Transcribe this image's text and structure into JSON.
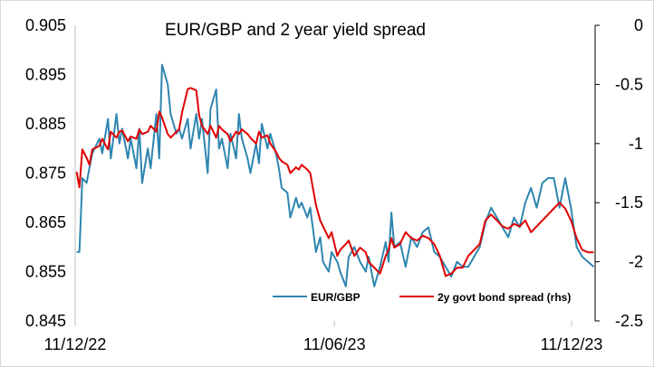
{
  "chart_data": {
    "type": "line",
    "title": "EUR/GBP and 2 year yield spread",
    "x_tick_labels": [
      "11/12/22",
      "11/06/23",
      "11/12/23"
    ],
    "x_range": [
      "2022-12-11",
      "2023-12-11"
    ],
    "y_left": {
      "range": [
        0.845,
        0.905
      ],
      "ticks": [
        0.905,
        0.895,
        0.885,
        0.875,
        0.865,
        0.855,
        0.845
      ],
      "tick_labels": [
        "0.905",
        "0.895",
        "0.885",
        "0.875",
        "0.865",
        "0.855",
        "0.845"
      ]
    },
    "y_right": {
      "range": [
        -2.5,
        0
      ],
      "ticks": [
        0,
        -0.5,
        -1,
        -1.5,
        -2,
        -2.5
      ],
      "tick_labels": [
        "0",
        "-0.5",
        "-1",
        "-1.5",
        "-2",
        "-2.5"
      ]
    },
    "grid": false,
    "legend_position": "bottom-right",
    "series": [
      {
        "name": "EUR/GBP",
        "axis": "left",
        "color": "#2E86B0",
        "points": [
          [
            "2022-12-12",
            0.859
          ],
          [
            "2022-12-14",
            0.859
          ],
          [
            "2022-12-16",
            0.874
          ],
          [
            "2022-12-19",
            0.873
          ],
          [
            "2022-12-21",
            0.876
          ],
          [
            "2022-12-23",
            0.879
          ],
          [
            "2022-12-28",
            0.882
          ],
          [
            "2022-12-30",
            0.879
          ],
          [
            "2023-01-03",
            0.886
          ],
          [
            "2023-01-05",
            0.878
          ],
          [
            "2023-01-09",
            0.887
          ],
          [
            "2023-01-11",
            0.881
          ],
          [
            "2023-01-13",
            0.884
          ],
          [
            "2023-01-17",
            0.878
          ],
          [
            "2023-01-19",
            0.882
          ],
          [
            "2023-01-23",
            0.876
          ],
          [
            "2023-01-25",
            0.884
          ],
          [
            "2023-01-27",
            0.873
          ],
          [
            "2023-01-31",
            0.88
          ],
          [
            "2023-02-02",
            0.876
          ],
          [
            "2023-02-06",
            0.887
          ],
          [
            "2023-02-08",
            0.878
          ],
          [
            "2023-02-10",
            0.897
          ],
          [
            "2023-02-14",
            0.893
          ],
          [
            "2023-02-16",
            0.887
          ],
          [
            "2023-02-20",
            0.883
          ],
          [
            "2023-02-22",
            0.884
          ],
          [
            "2023-02-24",
            0.882
          ],
          [
            "2023-02-28",
            0.886
          ],
          [
            "2023-03-02",
            0.88
          ],
          [
            "2023-03-06",
            0.887
          ],
          [
            "2023-03-08",
            0.882
          ],
          [
            "2023-03-10",
            0.886
          ],
          [
            "2023-03-14",
            0.875
          ],
          [
            "2023-03-16",
            0.888
          ],
          [
            "2023-03-20",
            0.892
          ],
          [
            "2023-03-22",
            0.88
          ],
          [
            "2023-03-24",
            0.882
          ],
          [
            "2023-03-28",
            0.876
          ],
          [
            "2023-03-30",
            0.883
          ],
          [
            "2023-04-03",
            0.878
          ],
          [
            "2023-04-05",
            0.887
          ],
          [
            "2023-04-07",
            0.882
          ],
          [
            "2023-04-11",
            0.878
          ],
          [
            "2023-04-13",
            0.875
          ],
          [
            "2023-04-17",
            0.881
          ],
          [
            "2023-04-19",
            0.877
          ],
          [
            "2023-04-21",
            0.885
          ],
          [
            "2023-04-25",
            0.88
          ],
          [
            "2023-04-27",
            0.883
          ],
          [
            "2023-05-01",
            0.879
          ],
          [
            "2023-05-03",
            0.876
          ],
          [
            "2023-05-05",
            0.872
          ],
          [
            "2023-05-09",
            0.871
          ],
          [
            "2023-05-11",
            0.866
          ],
          [
            "2023-05-15",
            0.87
          ],
          [
            "2023-05-17",
            0.868
          ],
          [
            "2023-05-19",
            0.869
          ],
          [
            "2023-05-23",
            0.866
          ],
          [
            "2023-05-25",
            0.868
          ],
          [
            "2023-05-29",
            0.859
          ],
          [
            "2023-06-01",
            0.862
          ],
          [
            "2023-06-03",
            0.857
          ],
          [
            "2023-06-07",
            0.855
          ],
          [
            "2023-06-09",
            0.859
          ],
          [
            "2023-06-13",
            0.857
          ],
          [
            "2023-06-15",
            0.855
          ],
          [
            "2023-06-19",
            0.852
          ],
          [
            "2023-06-21",
            0.858
          ],
          [
            "2023-06-25",
            0.86
          ],
          [
            "2023-06-29",
            0.857
          ],
          [
            "2023-07-03",
            0.855
          ],
          [
            "2023-07-05",
            0.858
          ],
          [
            "2023-07-09",
            0.852
          ],
          [
            "2023-07-13",
            0.856
          ],
          [
            "2023-07-17",
            0.861
          ],
          [
            "2023-07-19",
            0.857
          ],
          [
            "2023-07-21",
            0.867
          ],
          [
            "2023-07-23",
            0.86
          ],
          [
            "2023-07-27",
            0.861
          ],
          [
            "2023-07-31",
            0.856
          ],
          [
            "2023-08-04",
            0.862
          ],
          [
            "2023-08-08",
            0.86
          ],
          [
            "2023-08-12",
            0.863
          ],
          [
            "2023-08-16",
            0.864
          ],
          [
            "2023-08-20",
            0.859
          ],
          [
            "2023-08-24",
            0.858
          ],
          [
            "2023-08-28",
            0.856
          ],
          [
            "2023-09-01",
            0.854
          ],
          [
            "2023-09-05",
            0.857
          ],
          [
            "2023-09-09",
            0.856
          ],
          [
            "2023-09-13",
            0.856
          ],
          [
            "2023-09-17",
            0.858
          ],
          [
            "2023-09-21",
            0.86
          ],
          [
            "2023-09-25",
            0.865
          ],
          [
            "2023-09-29",
            0.868
          ],
          [
            "2023-10-03",
            0.866
          ],
          [
            "2023-10-07",
            0.864
          ],
          [
            "2023-10-11",
            0.862
          ],
          [
            "2023-10-15",
            0.866
          ],
          [
            "2023-10-19",
            0.864
          ],
          [
            "2023-10-23",
            0.869
          ],
          [
            "2023-10-27",
            0.872
          ],
          [
            "2023-10-31",
            0.868
          ],
          [
            "2023-11-04",
            0.873
          ],
          [
            "2023-11-08",
            0.874
          ],
          [
            "2023-11-12",
            0.874
          ],
          [
            "2023-11-16",
            0.868
          ],
          [
            "2023-11-20",
            0.874
          ],
          [
            "2023-11-24",
            0.868
          ],
          [
            "2023-11-28",
            0.86
          ],
          [
            "2023-12-02",
            0.858
          ],
          [
            "2023-12-06",
            0.857
          ],
          [
            "2023-12-10",
            0.856
          ]
        ]
      },
      {
        "name": "2y govt bond spread (rhs)",
        "axis": "right",
        "color": "#E00000",
        "points": [
          [
            "2022-12-12",
            -1.24
          ],
          [
            "2022-12-14",
            -1.37
          ],
          [
            "2022-12-16",
            -1.05
          ],
          [
            "2022-12-19",
            -1.12
          ],
          [
            "2022-12-21",
            -1.18
          ],
          [
            "2022-12-23",
            -1.05
          ],
          [
            "2022-12-28",
            -1.02
          ],
          [
            "2022-12-30",
            -0.96
          ],
          [
            "2023-01-03",
            -1.05
          ],
          [
            "2023-01-05",
            -0.9
          ],
          [
            "2023-01-09",
            -0.95
          ],
          [
            "2023-01-11",
            -0.9
          ],
          [
            "2023-01-13",
            -0.89
          ],
          [
            "2023-01-17",
            -0.98
          ],
          [
            "2023-01-19",
            -0.94
          ],
          [
            "2023-01-23",
            -0.96
          ],
          [
            "2023-01-25",
            -0.88
          ],
          [
            "2023-01-27",
            -0.92
          ],
          [
            "2023-01-31",
            -0.9
          ],
          [
            "2023-02-02",
            -0.85
          ],
          [
            "2023-02-06",
            -0.9
          ],
          [
            "2023-02-08",
            -0.73
          ],
          [
            "2023-02-10",
            -0.78
          ],
          [
            "2023-02-14",
            -0.92
          ],
          [
            "2023-02-16",
            -0.95
          ],
          [
            "2023-02-20",
            -0.9
          ],
          [
            "2023-02-22",
            -0.88
          ],
          [
            "2023-02-24",
            -0.74
          ],
          [
            "2023-02-28",
            -0.54
          ],
          [
            "2023-03-02",
            -0.53
          ],
          [
            "2023-03-06",
            -0.55
          ],
          [
            "2023-03-08",
            -0.76
          ],
          [
            "2023-03-10",
            -0.85
          ],
          [
            "2023-03-14",
            -0.92
          ],
          [
            "2023-03-16",
            -0.85
          ],
          [
            "2023-03-20",
            -0.95
          ],
          [
            "2023-03-22",
            -0.85
          ],
          [
            "2023-03-24",
            -0.88
          ],
          [
            "2023-03-28",
            -0.92
          ],
          [
            "2023-03-30",
            -0.98
          ],
          [
            "2023-04-03",
            -0.9
          ],
          [
            "2023-04-05",
            -0.92
          ],
          [
            "2023-04-07",
            -0.88
          ],
          [
            "2023-04-11",
            -0.92
          ],
          [
            "2023-04-13",
            -0.95
          ],
          [
            "2023-04-17",
            -1.0
          ],
          [
            "2023-04-19",
            -0.9
          ],
          [
            "2023-04-21",
            -0.95
          ],
          [
            "2023-04-25",
            -0.93
          ],
          [
            "2023-04-27",
            -1.0
          ],
          [
            "2023-05-01",
            -1.07
          ],
          [
            "2023-05-03",
            -1.12
          ],
          [
            "2023-05-05",
            -1.15
          ],
          [
            "2023-05-09",
            -1.18
          ],
          [
            "2023-05-11",
            -1.25
          ],
          [
            "2023-05-15",
            -1.2
          ],
          [
            "2023-05-17",
            -1.22
          ],
          [
            "2023-05-19",
            -1.18
          ],
          [
            "2023-05-23",
            -1.22
          ],
          [
            "2023-05-25",
            -1.25
          ],
          [
            "2023-05-29",
            -1.52
          ],
          [
            "2023-06-01",
            -1.65
          ],
          [
            "2023-06-03",
            -1.7
          ],
          [
            "2023-06-07",
            -1.8
          ],
          [
            "2023-06-09",
            -1.75
          ],
          [
            "2023-06-13",
            -1.95
          ],
          [
            "2023-06-15",
            -1.9
          ],
          [
            "2023-06-19",
            -1.85
          ],
          [
            "2023-06-21",
            -1.82
          ],
          [
            "2023-06-25",
            -1.95
          ],
          [
            "2023-06-29",
            -1.88
          ],
          [
            "2023-07-03",
            -1.92
          ],
          [
            "2023-07-05",
            -2.0
          ],
          [
            "2023-07-09",
            -2.05
          ],
          [
            "2023-07-13",
            -2.1
          ],
          [
            "2023-07-17",
            -1.95
          ],
          [
            "2023-07-19",
            -1.9
          ],
          [
            "2023-07-21",
            -1.8
          ],
          [
            "2023-07-23",
            -1.88
          ],
          [
            "2023-07-27",
            -1.85
          ],
          [
            "2023-07-31",
            -1.75
          ],
          [
            "2023-08-04",
            -1.8
          ],
          [
            "2023-08-08",
            -1.82
          ],
          [
            "2023-08-12",
            -1.78
          ],
          [
            "2023-08-16",
            -1.8
          ],
          [
            "2023-08-20",
            -1.85
          ],
          [
            "2023-08-24",
            -1.95
          ],
          [
            "2023-08-28",
            -2.12
          ],
          [
            "2023-09-01",
            -2.1
          ],
          [
            "2023-09-05",
            -2.05
          ],
          [
            "2023-09-09",
            -2.05
          ],
          [
            "2023-09-13",
            -1.95
          ],
          [
            "2023-09-17",
            -1.9
          ],
          [
            "2023-09-21",
            -1.85
          ],
          [
            "2023-09-25",
            -1.65
          ],
          [
            "2023-09-29",
            -1.6
          ],
          [
            "2023-10-03",
            -1.65
          ],
          [
            "2023-10-07",
            -1.7
          ],
          [
            "2023-10-11",
            -1.72
          ],
          [
            "2023-10-15",
            -1.68
          ],
          [
            "2023-10-19",
            -1.7
          ],
          [
            "2023-10-23",
            -1.65
          ],
          [
            "2023-10-27",
            -1.75
          ],
          [
            "2023-10-31",
            -1.7
          ],
          [
            "2023-11-04",
            -1.65
          ],
          [
            "2023-11-08",
            -1.6
          ],
          [
            "2023-11-12",
            -1.55
          ],
          [
            "2023-11-16",
            -1.5
          ],
          [
            "2023-11-20",
            -1.55
          ],
          [
            "2023-11-24",
            -1.65
          ],
          [
            "2023-11-28",
            -1.8
          ],
          [
            "2023-12-02",
            -1.9
          ],
          [
            "2023-12-06",
            -1.92
          ],
          [
            "2023-12-10",
            -1.92
          ]
        ]
      }
    ]
  }
}
